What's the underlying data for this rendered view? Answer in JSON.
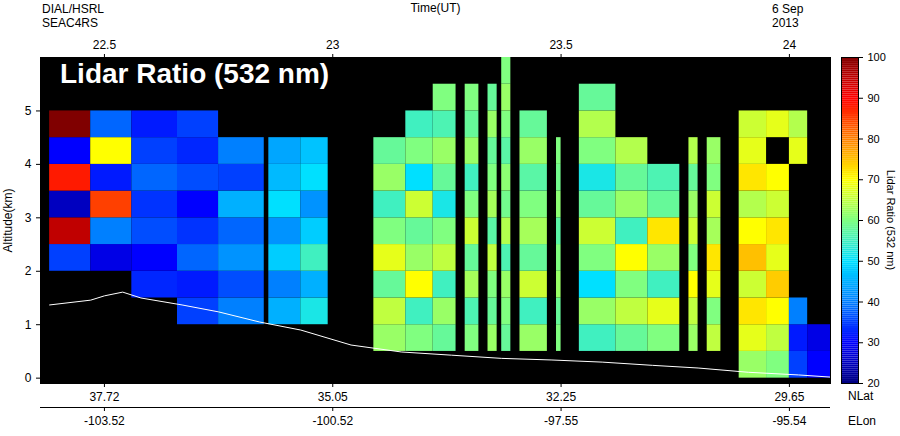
{
  "chart_data": {
    "type": "heatmap",
    "title": "Lidar Ratio (532 nm)",
    "instrument": [
      "DIAL/HSRL",
      "SEAC4RS"
    ],
    "date": [
      "6 Sep",
      "2013"
    ],
    "x_label": "Time(UT)",
    "y_label": "Altitude(km)",
    "xlim": [
      22.36,
      24.09
    ],
    "xticks": [
      22.5,
      23,
      23.5,
      24
    ],
    "ylim": [
      -0.1,
      6.0
    ],
    "yticks": [
      0,
      1,
      2,
      3,
      4,
      5
    ],
    "lat_label": "NLat",
    "lat_ticks": [
      {
        "value": 22.5,
        "label": "37.72"
      },
      {
        "value": 23,
        "label": "35.05"
      },
      {
        "value": 23.5,
        "label": "32.25"
      },
      {
        "value": 24,
        "label": "29.65"
      }
    ],
    "lon_label": "ELon",
    "lon_ticks": [
      {
        "value": 22.5,
        "label": "-103.52"
      },
      {
        "value": 23,
        "label": "-100.52"
      },
      {
        "value": 23.5,
        "label": "-97.55"
      },
      {
        "value": 24,
        "label": "-95.54"
      }
    ],
    "altitude_edges": [
      0,
      0.5,
      1,
      1.5,
      2,
      2.5,
      3,
      3.5,
      4,
      4.5,
      5,
      5.5,
      6
    ],
    "columns": [
      {
        "t0": 22.38,
        "t1": 22.47,
        "values": [
          null,
          null,
          null,
          null,
          35,
          95,
          25,
          88,
          30,
          100,
          null,
          null
        ]
      },
      {
        "t0": 22.47,
        "t1": 22.56,
        "values": [
          null,
          null,
          null,
          null,
          28,
          40,
          85,
          32,
          70,
          38,
          null,
          null
        ]
      },
      {
        "t0": 22.56,
        "t1": 22.66,
        "values": [
          null,
          null,
          null,
          33,
          30,
          36,
          34,
          38,
          35,
          32,
          null,
          null
        ]
      },
      {
        "t0": 22.66,
        "t1": 22.75,
        "values": [
          null,
          null,
          35,
          32,
          38,
          34,
          30,
          36,
          33,
          35,
          null,
          null
        ]
      },
      {
        "t0": 22.75,
        "t1": 22.85,
        "values": [
          null,
          null,
          40,
          36,
          42,
          38,
          45,
          35,
          40,
          null,
          null,
          null
        ]
      },
      {
        "t0": 22.86,
        "t1": 22.93,
        "values": [
          null,
          null,
          45,
          40,
          48,
          42,
          50,
          46,
          44,
          null,
          null,
          null
        ]
      },
      {
        "t0": 22.93,
        "t1": 22.99,
        "values": [
          null,
          null,
          52,
          45,
          55,
          48,
          42,
          50,
          47,
          null,
          null,
          null
        ]
      },
      {
        "t0": 23.09,
        "t1": 23.16,
        "values": [
          null,
          62,
          65,
          58,
          68,
          60,
          55,
          62,
          58,
          null,
          null,
          null
        ]
      },
      {
        "t0": 23.16,
        "t1": 23.22,
        "values": [
          null,
          60,
          55,
          70,
          62,
          58,
          66,
          50,
          60,
          55,
          null,
          null
        ]
      },
      {
        "t0": 23.22,
        "t1": 23.27,
        "values": [
          null,
          58,
          62,
          55,
          65,
          60,
          52,
          58,
          62,
          56,
          60,
          null
        ]
      },
      {
        "t0": 23.29,
        "t1": 23.32,
        "values": [
          null,
          60,
          56,
          63,
          58,
          66,
          60,
          55,
          62,
          58,
          60,
          null
        ]
      },
      {
        "t0": 23.34,
        "t1": 23.36,
        "values": [
          null,
          62,
          58,
          60,
          65,
          57,
          63,
          60,
          58,
          62,
          58,
          null
        ]
      },
      {
        "t0": 23.37,
        "t1": 23.39,
        "values": [
          null,
          58,
          60,
          62,
          56,
          64,
          59,
          61,
          57,
          60,
          62,
          60
        ]
      },
      {
        "t0": 23.41,
        "t1": 23.47,
        "values": [
          null,
          62,
          55,
          66,
          58,
          63,
          60,
          57,
          62,
          58,
          null,
          null
        ]
      },
      {
        "t0": 23.49,
        "t1": 23.5,
        "values": [
          null,
          60,
          58,
          62,
          60,
          57,
          61,
          59,
          60,
          null,
          null,
          null
        ]
      },
      {
        "t0": 23.54,
        "t1": 23.62,
        "values": [
          null,
          55,
          62,
          50,
          60,
          66,
          58,
          52,
          60,
          64,
          58,
          null
        ]
      },
      {
        "t0": 23.62,
        "t1": 23.69,
        "values": [
          null,
          58,
          65,
          60,
          70,
          55,
          62,
          58,
          64,
          null,
          null,
          null
        ]
      },
      {
        "t0": 23.69,
        "t1": 23.76,
        "values": [
          null,
          60,
          68,
          55,
          62,
          72,
          58,
          56,
          null,
          null,
          null,
          null
        ]
      },
      {
        "t0": 23.78,
        "t1": 23.8,
        "values": [
          null,
          62,
          65,
          70,
          60,
          66,
          62,
          58,
          64,
          null,
          null,
          null
        ]
      },
      {
        "t0": 23.82,
        "t1": 23.85,
        "values": [
          null,
          65,
          60,
          68,
          72,
          63,
          66,
          60,
          62,
          null,
          null,
          null
        ]
      },
      {
        "t0": 23.89,
        "t1": 23.95,
        "values": [
          62,
          68,
          72,
          66,
          75,
          70,
          64,
          72,
          68,
          66,
          null,
          null
        ]
      },
      {
        "t0": 23.95,
        "t1": 24.0,
        "values": [
          60,
          65,
          70,
          74,
          68,
          72,
          66,
          70,
          null,
          68,
          null,
          null
        ]
      },
      {
        "t0": 24.0,
        "t1": 24.04,
        "values": [
          35,
          32,
          40,
          null,
          null,
          null,
          null,
          null,
          68,
          64,
          null,
          null
        ]
      },
      {
        "t0": 24.04,
        "t1": 24.09,
        "values": [
          30,
          28,
          null,
          null,
          null,
          null,
          null,
          null,
          null,
          null,
          null,
          null
        ]
      }
    ],
    "surface": {
      "color": "white",
      "x": [
        22.38,
        22.47,
        22.5,
        22.54,
        22.58,
        22.67,
        22.75,
        22.84,
        22.93,
        23.04,
        23.15,
        23.26,
        23.37,
        23.48,
        23.59,
        23.7,
        23.8,
        23.91,
        24.02,
        24.09
      ],
      "y": [
        1.37,
        1.46,
        1.54,
        1.61,
        1.5,
        1.37,
        1.24,
        1.05,
        0.9,
        0.62,
        0.49,
        0.43,
        0.37,
        0.34,
        0.3,
        0.24,
        0.19,
        0.11,
        0.06,
        0.02
      ]
    },
    "colorbar": {
      "label": "Lidar Ratio (532 nm)",
      "clim": [
        20,
        100
      ],
      "ticks": [
        20,
        30,
        40,
        50,
        60,
        70,
        80,
        90,
        100
      ]
    }
  }
}
